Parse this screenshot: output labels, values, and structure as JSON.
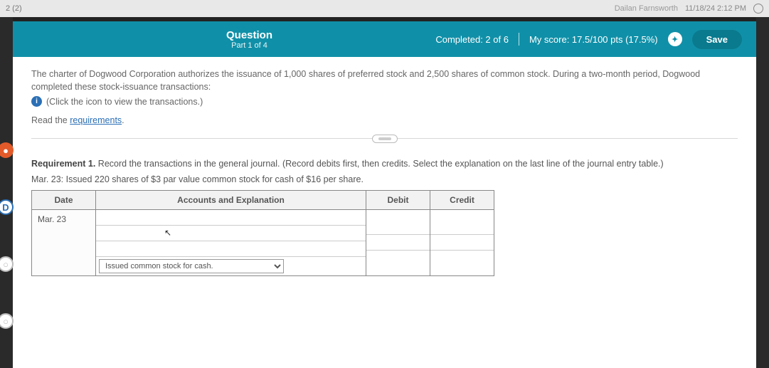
{
  "top": {
    "tab_label": "2 (2)",
    "user_name": "Dailan Farnsworth",
    "timestamp": "11/18/24 2:12 PM"
  },
  "header": {
    "title": "Question",
    "subtitle": "Part 1 of 4",
    "completed": "Completed: 2 of 6",
    "score": "My score: 17.5/100 pts (17.5%)",
    "save_label": "Save"
  },
  "body": {
    "intro": "The charter of Dogwood Corporation authorizes the issuance of 1,000 shares of preferred stock and 2,500 shares of common stock. During a two-month period, Dogwood completed these stock-issuance transactions:",
    "click_hint": "(Click the icon to view the transactions.)",
    "read_prefix": "Read the ",
    "read_link": "requirements",
    "read_suffix": ".",
    "requirement_label": "Requirement 1.",
    "requirement_text": " Record the transactions in the general journal. (Record debits first, then credits. Select the explanation on the last line of the journal entry table.)",
    "transaction": "Mar. 23: Issued 220 shares of $3 par value common stock for cash of $16 per share."
  },
  "table": {
    "col_date": "Date",
    "col_acct": "Accounts and Explanation",
    "col_debit": "Debit",
    "col_credit": "Credit",
    "date_value": "Mar. 23",
    "explanation_selected": "Issued common stock for cash."
  },
  "style": {
    "header_bg": "#1090a8",
    "link_color": "#2b6fb5"
  }
}
